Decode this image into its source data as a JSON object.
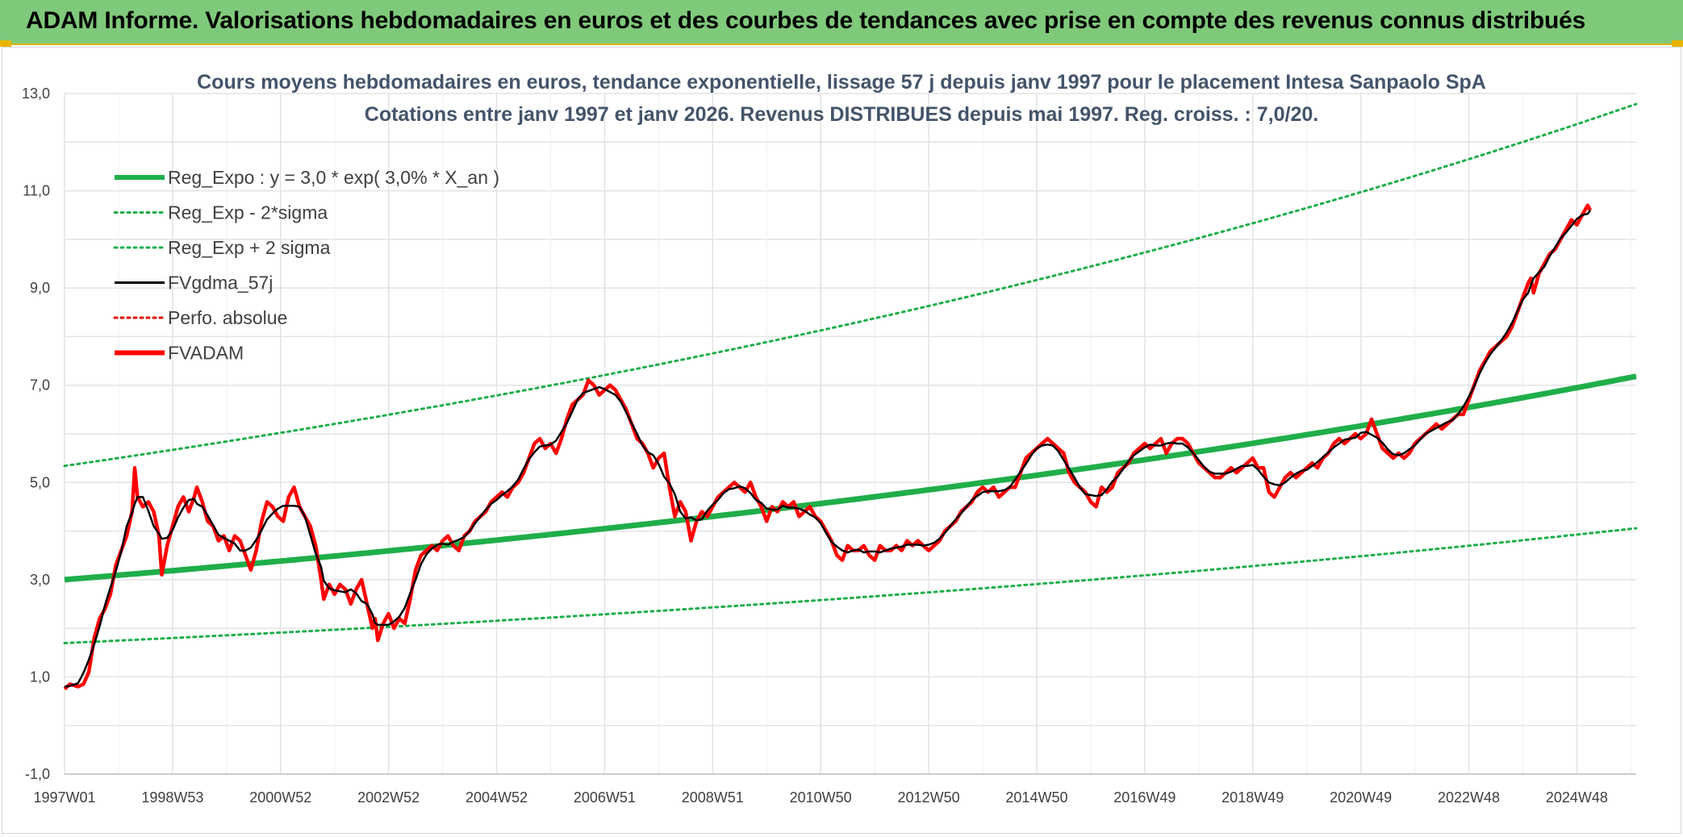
{
  "header": {
    "title": "ADAM Informe. Valorisations hebdomadaires en euros et des courbes de tendances avec prise en compte des revenus connus distribués",
    "background_color": "#7fc97a",
    "accent_color": "#e7b400"
  },
  "chart_data": {
    "type": "line",
    "title_line1": "Cours moyens hebdomadaires en euros, tendance exponentielle, lissage 57 j depuis janv 1997 pour le placement Intesa Sanpaolo SpA",
    "title_line2": "Cotations entre janv 1997 et janv 2026. Revenus DISTRIBUES depuis mai 1997. Reg. croiss. : 7,0/20.",
    "x_tick_labels": [
      "1997W01",
      "1998W53",
      "2000W52",
      "2002W52",
      "2004W52",
      "2006W51",
      "2008W51",
      "2010W50",
      "2012W50",
      "2014W50",
      "2016W49",
      "2018W49",
      "2020W49",
      "2022W48",
      "2024W48"
    ],
    "x_tick_years": [
      1997.0,
      1999.0,
      2001.0,
      2003.0,
      2005.0,
      2007.0,
      2009.0,
      2011.0,
      2013.0,
      2015.0,
      2017.0,
      2019.0,
      2021.0,
      2023.0,
      2025.0
    ],
    "x_range": [
      1997.0,
      2026.1
    ],
    "y_tick_labels": [
      "13,0",
      "11,0",
      "9,0",
      "7,0",
      "5,0",
      "3,0",
      "1,0",
      "-1,0"
    ],
    "y_tick_values": [
      13,
      11,
      9,
      7,
      5,
      3,
      1,
      -1
    ],
    "ylim": [
      -1,
      13
    ],
    "grid": true,
    "legend_position": "top-left",
    "legend": [
      {
        "label": "Reg_Expo : y = 3,0 * exp( 3,0% *  X_an )",
        "color": "#1fae4a",
        "style": "solid-thick"
      },
      {
        "label": "Reg_Exp - 2*sigma",
        "color": "#1fae4a",
        "style": "dotted"
      },
      {
        "label": "Reg_Exp + 2 sigma",
        "color": "#1fae4a",
        "style": "dotted"
      },
      {
        "label": "FVgdma_57j",
        "color": "#000000",
        "style": "solid"
      },
      {
        "label": "Perfo. absolue",
        "color": "#e00000",
        "style": "dotted"
      },
      {
        "label": "FVADAM",
        "color": "#ff0000",
        "style": "solid-thick"
      }
    ],
    "regression": {
      "a": 3.0,
      "rate": 0.03,
      "lower_factor": 0.565,
      "upper_factor": 1.78
    },
    "fvadam_points": [
      [
        1997.0,
        0.75
      ],
      [
        1997.1,
        0.85
      ],
      [
        1997.25,
        0.8
      ],
      [
        1997.35,
        0.85
      ],
      [
        1997.45,
        1.1
      ],
      [
        1997.55,
        1.8
      ],
      [
        1997.65,
        2.2
      ],
      [
        1997.75,
        2.4
      ],
      [
        1997.85,
        2.7
      ],
      [
        1997.95,
        3.3
      ],
      [
        1998.05,
        3.6
      ],
      [
        1998.15,
        3.9
      ],
      [
        1998.25,
        4.4
      ],
      [
        1998.3,
        5.3
      ],
      [
        1998.35,
        4.7
      ],
      [
        1998.45,
        4.5
      ],
      [
        1998.55,
        4.6
      ],
      [
        1998.65,
        4.4
      ],
      [
        1998.75,
        3.9
      ],
      [
        1998.8,
        3.1
      ],
      [
        1998.9,
        3.7
      ],
      [
        1999.0,
        4.1
      ],
      [
        1999.1,
        4.5
      ],
      [
        1999.2,
        4.7
      ],
      [
        1999.3,
        4.4
      ],
      [
        1999.4,
        4.7
      ],
      [
        1999.45,
        4.9
      ],
      [
        1999.55,
        4.6
      ],
      [
        1999.65,
        4.2
      ],
      [
        1999.75,
        4.1
      ],
      [
        1999.85,
        3.8
      ],
      [
        1999.95,
        3.9
      ],
      [
        2000.05,
        3.6
      ],
      [
        2000.15,
        3.9
      ],
      [
        2000.25,
        3.8
      ],
      [
        2000.35,
        3.5
      ],
      [
        2000.45,
        3.2
      ],
      [
        2000.55,
        3.6
      ],
      [
        2000.65,
        4.2
      ],
      [
        2000.75,
        4.6
      ],
      [
        2000.85,
        4.5
      ],
      [
        2000.95,
        4.3
      ],
      [
        2001.05,
        4.2
      ],
      [
        2001.15,
        4.7
      ],
      [
        2001.25,
        4.9
      ],
      [
        2001.35,
        4.5
      ],
      [
        2001.45,
        4.3
      ],
      [
        2001.55,
        4.1
      ],
      [
        2001.65,
        3.7
      ],
      [
        2001.75,
        3.0
      ],
      [
        2001.8,
        2.6
      ],
      [
        2001.9,
        2.9
      ],
      [
        2002.0,
        2.7
      ],
      [
        2002.1,
        2.9
      ],
      [
        2002.2,
        2.8
      ],
      [
        2002.3,
        2.5
      ],
      [
        2002.4,
        2.8
      ],
      [
        2002.5,
        3.0
      ],
      [
        2002.6,
        2.5
      ],
      [
        2002.7,
        2.0
      ],
      [
        2002.75,
        2.2
      ],
      [
        2002.8,
        1.75
      ],
      [
        2002.9,
        2.1
      ],
      [
        2003.0,
        2.3
      ],
      [
        2003.1,
        2.0
      ],
      [
        2003.2,
        2.2
      ],
      [
        2003.3,
        2.1
      ],
      [
        2003.4,
        2.6
      ],
      [
        2003.5,
        3.2
      ],
      [
        2003.6,
        3.5
      ],
      [
        2003.7,
        3.6
      ],
      [
        2003.8,
        3.7
      ],
      [
        2003.9,
        3.6
      ],
      [
        2004.0,
        3.8
      ],
      [
        2004.1,
        3.9
      ],
      [
        2004.2,
        3.7
      ],
      [
        2004.3,
        3.6
      ],
      [
        2004.4,
        3.9
      ],
      [
        2004.5,
        4.0
      ],
      [
        2004.6,
        4.2
      ],
      [
        2004.7,
        4.3
      ],
      [
        2004.8,
        4.4
      ],
      [
        2004.9,
        4.6
      ],
      [
        2005.0,
        4.7
      ],
      [
        2005.1,
        4.8
      ],
      [
        2005.2,
        4.7
      ],
      [
        2005.3,
        4.9
      ],
      [
        2005.4,
        5.0
      ],
      [
        2005.5,
        5.2
      ],
      [
        2005.6,
        5.5
      ],
      [
        2005.7,
        5.8
      ],
      [
        2005.8,
        5.9
      ],
      [
        2005.9,
        5.7
      ],
      [
        2006.0,
        5.8
      ],
      [
        2006.1,
        5.6
      ],
      [
        2006.2,
        5.9
      ],
      [
        2006.3,
        6.3
      ],
      [
        2006.4,
        6.6
      ],
      [
        2006.5,
        6.7
      ],
      [
        2006.6,
        6.8
      ],
      [
        2006.7,
        7.1
      ],
      [
        2006.8,
        7.0
      ],
      [
        2006.9,
        6.8
      ],
      [
        2007.0,
        6.9
      ],
      [
        2007.1,
        7.0
      ],
      [
        2007.2,
        6.9
      ],
      [
        2007.3,
        6.7
      ],
      [
        2007.4,
        6.5
      ],
      [
        2007.5,
        6.2
      ],
      [
        2007.6,
        5.9
      ],
      [
        2007.7,
        5.8
      ],
      [
        2007.8,
        5.6
      ],
      [
        2007.9,
        5.3
      ],
      [
        2008.0,
        5.5
      ],
      [
        2008.1,
        5.6
      ],
      [
        2008.2,
        4.9
      ],
      [
        2008.3,
        4.3
      ],
      [
        2008.4,
        4.6
      ],
      [
        2008.5,
        4.4
      ],
      [
        2008.6,
        3.8
      ],
      [
        2008.7,
        4.2
      ],
      [
        2008.8,
        4.4
      ],
      [
        2008.9,
        4.3
      ],
      [
        2009.0,
        4.5
      ],
      [
        2009.1,
        4.7
      ],
      [
        2009.2,
        4.8
      ],
      [
        2009.3,
        4.9
      ],
      [
        2009.4,
        5.0
      ],
      [
        2009.5,
        4.9
      ],
      [
        2009.6,
        4.8
      ],
      [
        2009.7,
        5.0
      ],
      [
        2009.8,
        4.7
      ],
      [
        2009.9,
        4.5
      ],
      [
        2010.0,
        4.2
      ],
      [
        2010.1,
        4.5
      ],
      [
        2010.2,
        4.4
      ],
      [
        2010.3,
        4.6
      ],
      [
        2010.4,
        4.5
      ],
      [
        2010.5,
        4.6
      ],
      [
        2010.6,
        4.3
      ],
      [
        2010.7,
        4.4
      ],
      [
        2010.8,
        4.5
      ],
      [
        2010.9,
        4.3
      ],
      [
        2011.0,
        4.2
      ],
      [
        2011.1,
        4.0
      ],
      [
        2011.2,
        3.8
      ],
      [
        2011.3,
        3.5
      ],
      [
        2011.4,
        3.4
      ],
      [
        2011.5,
        3.7
      ],
      [
        2011.6,
        3.6
      ],
      [
        2011.7,
        3.6
      ],
      [
        2011.8,
        3.7
      ],
      [
        2011.9,
        3.5
      ],
      [
        2012.0,
        3.4
      ],
      [
        2012.1,
        3.7
      ],
      [
        2012.2,
        3.6
      ],
      [
        2012.3,
        3.6
      ],
      [
        2012.4,
        3.7
      ],
      [
        2012.5,
        3.6
      ],
      [
        2012.6,
        3.8
      ],
      [
        2012.7,
        3.7
      ],
      [
        2012.8,
        3.8
      ],
      [
        2012.9,
        3.7
      ],
      [
        2013.0,
        3.6
      ],
      [
        2013.1,
        3.7
      ],
      [
        2013.2,
        3.8
      ],
      [
        2013.3,
        4.0
      ],
      [
        2013.4,
        4.1
      ],
      [
        2013.5,
        4.2
      ],
      [
        2013.6,
        4.4
      ],
      [
        2013.7,
        4.5
      ],
      [
        2013.8,
        4.6
      ],
      [
        2013.9,
        4.8
      ],
      [
        2014.0,
        4.9
      ],
      [
        2014.1,
        4.8
      ],
      [
        2014.2,
        4.9
      ],
      [
        2014.3,
        4.7
      ],
      [
        2014.4,
        4.8
      ],
      [
        2014.5,
        4.9
      ],
      [
        2014.6,
        4.9
      ],
      [
        2014.7,
        5.2
      ],
      [
        2014.8,
        5.5
      ],
      [
        2014.9,
        5.6
      ],
      [
        2015.0,
        5.7
      ],
      [
        2015.1,
        5.8
      ],
      [
        2015.2,
        5.9
      ],
      [
        2015.3,
        5.8
      ],
      [
        2015.4,
        5.7
      ],
      [
        2015.5,
        5.6
      ],
      [
        2015.6,
        5.2
      ],
      [
        2015.7,
        5.0
      ],
      [
        2015.8,
        4.9
      ],
      [
        2015.9,
        4.8
      ],
      [
        2016.0,
        4.6
      ],
      [
        2016.1,
        4.5
      ],
      [
        2016.2,
        4.9
      ],
      [
        2016.3,
        4.8
      ],
      [
        2016.4,
        4.9
      ],
      [
        2016.5,
        5.2
      ],
      [
        2016.6,
        5.3
      ],
      [
        2016.7,
        5.4
      ],
      [
        2016.8,
        5.6
      ],
      [
        2016.9,
        5.7
      ],
      [
        2017.0,
        5.8
      ],
      [
        2017.1,
        5.7
      ],
      [
        2017.2,
        5.8
      ],
      [
        2017.3,
        5.9
      ],
      [
        2017.4,
        5.6
      ],
      [
        2017.5,
        5.8
      ],
      [
        2017.6,
        5.9
      ],
      [
        2017.7,
        5.9
      ],
      [
        2017.8,
        5.8
      ],
      [
        2017.9,
        5.6
      ],
      [
        2018.0,
        5.4
      ],
      [
        2018.1,
        5.3
      ],
      [
        2018.2,
        5.2
      ],
      [
        2018.3,
        5.1
      ],
      [
        2018.4,
        5.1
      ],
      [
        2018.5,
        5.2
      ],
      [
        2018.6,
        5.3
      ],
      [
        2018.7,
        5.2
      ],
      [
        2018.8,
        5.3
      ],
      [
        2018.9,
        5.4
      ],
      [
        2019.0,
        5.5
      ],
      [
        2019.1,
        5.3
      ],
      [
        2019.2,
        5.3
      ],
      [
        2019.3,
        4.8
      ],
      [
        2019.4,
        4.7
      ],
      [
        2019.5,
        4.9
      ],
      [
        2019.6,
        5.1
      ],
      [
        2019.7,
        5.2
      ],
      [
        2019.8,
        5.1
      ],
      [
        2019.9,
        5.2
      ],
      [
        2020.0,
        5.3
      ],
      [
        2020.1,
        5.4
      ],
      [
        2020.2,
        5.3
      ],
      [
        2020.3,
        5.5
      ],
      [
        2020.4,
        5.6
      ],
      [
        2020.5,
        5.8
      ],
      [
        2020.6,
        5.9
      ],
      [
        2020.7,
        5.8
      ],
      [
        2020.8,
        5.9
      ],
      [
        2020.9,
        6.0
      ],
      [
        2021.0,
        5.9
      ],
      [
        2021.1,
        6.0
      ],
      [
        2021.2,
        6.3
      ],
      [
        2021.3,
        6.0
      ],
      [
        2021.4,
        5.7
      ],
      [
        2021.5,
        5.6
      ],
      [
        2021.6,
        5.5
      ],
      [
        2021.7,
        5.6
      ],
      [
        2021.8,
        5.5
      ],
      [
        2021.9,
        5.6
      ],
      [
        2022.0,
        5.8
      ],
      [
        2022.1,
        5.9
      ],
      [
        2022.2,
        6.0
      ],
      [
        2022.3,
        6.1
      ],
      [
        2022.4,
        6.2
      ],
      [
        2022.5,
        6.1
      ],
      [
        2022.6,
        6.2
      ],
      [
        2022.7,
        6.3
      ],
      [
        2022.8,
        6.4
      ],
      [
        2022.9,
        6.4
      ],
      [
        2023.0,
        6.7
      ],
      [
        2023.1,
        7.0
      ],
      [
        2023.2,
        7.3
      ],
      [
        2023.3,
        7.5
      ],
      [
        2023.4,
        7.7
      ],
      [
        2023.5,
        7.8
      ],
      [
        2023.6,
        7.9
      ],
      [
        2023.7,
        8.0
      ],
      [
        2023.8,
        8.2
      ],
      [
        2023.9,
        8.5
      ],
      [
        2024.0,
        8.8
      ],
      [
        2024.1,
        9.1
      ],
      [
        2024.15,
        9.2
      ],
      [
        2024.2,
        8.9
      ],
      [
        2024.3,
        9.3
      ],
      [
        2024.4,
        9.5
      ],
      [
        2024.5,
        9.7
      ],
      [
        2024.6,
        9.8
      ],
      [
        2024.7,
        10.0
      ],
      [
        2024.8,
        10.2
      ],
      [
        2024.9,
        10.4
      ],
      [
        2025.0,
        10.3
      ],
      [
        2025.1,
        10.5
      ],
      [
        2025.2,
        10.7
      ],
      [
        2025.25,
        10.6
      ]
    ]
  }
}
